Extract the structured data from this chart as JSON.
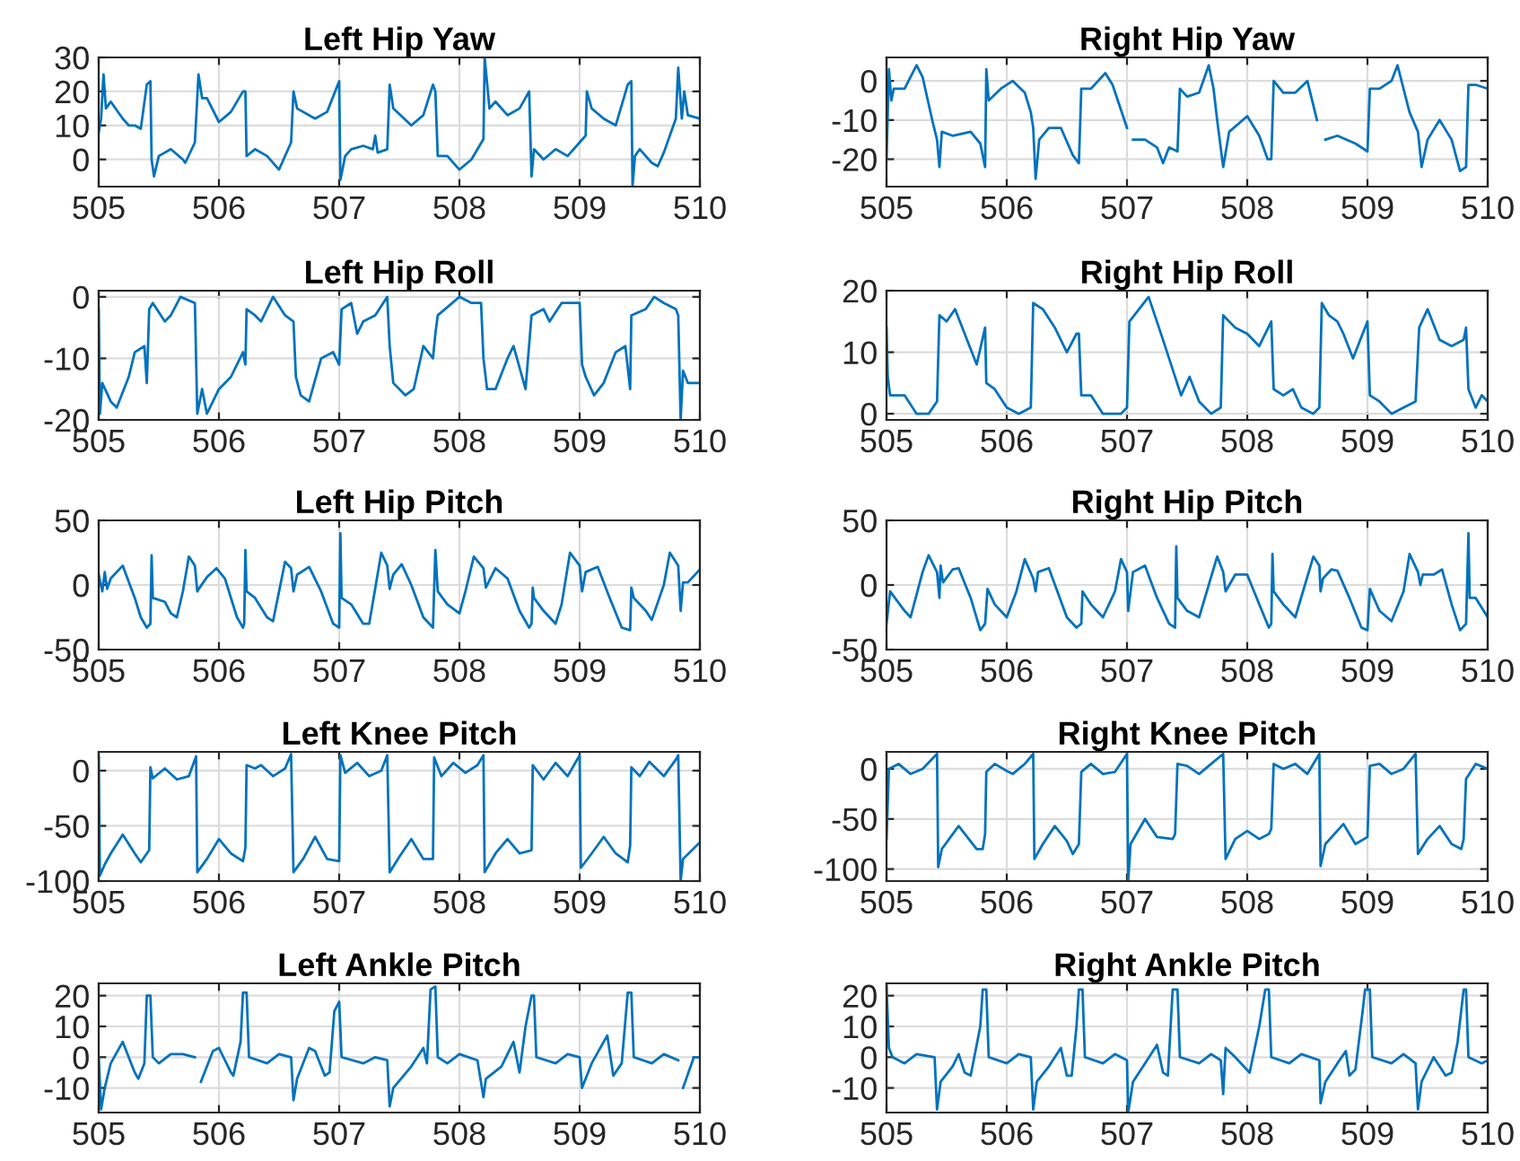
{
  "chart_data": [
    {
      "type": "line",
      "title": "Left Hip Yaw",
      "color": "#0072bd",
      "grid": true,
      "xlim": [
        505,
        510
      ],
      "xticks": [
        505,
        506,
        507,
        508,
        509,
        510
      ],
      "ylim": [
        -8,
        30
      ],
      "yticks": [
        0,
        10,
        20,
        30
      ],
      "x": [
        505.0,
        505.02,
        505.04,
        505.06,
        505.1,
        505.2,
        505.25,
        505.3,
        505.35,
        505.4,
        505.43,
        505.44,
        505.46,
        505.5,
        505.6,
        505.7,
        505.72,
        505.8,
        505.83,
        505.86,
        505.9,
        506.0,
        506.1,
        506.2,
        506.22,
        506.23,
        506.3,
        506.4,
        506.5,
        506.6,
        506.62,
        506.65,
        506.8,
        506.9,
        507.0,
        507.01,
        507.05,
        507.1,
        507.2,
        507.28,
        507.3,
        507.32,
        507.4,
        507.42,
        507.45,
        507.6,
        507.7,
        507.78,
        507.8,
        507.82,
        507.9,
        508.0,
        508.1,
        508.2,
        508.21,
        508.25,
        508.3,
        508.4,
        508.5,
        508.58,
        508.6,
        508.62,
        508.7,
        508.8,
        508.9,
        509.0,
        509.05,
        509.06,
        509.1,
        509.2,
        509.3,
        509.4,
        509.43,
        509.44,
        509.46,
        509.5,
        509.6,
        509.65,
        509.7,
        509.8,
        509.82,
        509.85,
        509.87,
        509.9,
        510.0
      ],
      "values": [
        8,
        12,
        25,
        15,
        17,
        12,
        10,
        10,
        9,
        22,
        23,
        0,
        -5,
        1,
        3,
        0,
        -1,
        5,
        25,
        18,
        18,
        11,
        14,
        20,
        20,
        1,
        3,
        1,
        -3,
        5,
        20,
        15,
        12,
        14,
        23,
        -6,
        1,
        3,
        4,
        3,
        7,
        2,
        3,
        22,
        15,
        10,
        13,
        22,
        20,
        1,
        1,
        -3,
        0,
        6,
        30,
        15,
        17,
        13,
        15,
        20,
        -5,
        3,
        0,
        3,
        1,
        5,
        7,
        20,
        15,
        12,
        10,
        22,
        23,
        -8,
        1,
        3,
        -1,
        -2,
        2,
        12,
        27,
        12,
        20,
        13,
        12
      ]
    },
    {
      "type": "line",
      "title": "Right Hip Yaw",
      "color": "#0072bd",
      "grid": true,
      "xlim": [
        505,
        510
      ],
      "xticks": [
        505,
        506,
        507,
        508,
        509,
        510
      ],
      "ylim": [
        -27,
        6
      ],
      "yticks": [
        -20,
        -10,
        0
      ],
      "x": [
        505.0,
        505.02,
        505.04,
        505.06,
        505.15,
        505.25,
        505.3,
        505.38,
        505.42,
        505.44,
        505.46,
        505.55,
        505.7,
        505.78,
        505.82,
        505.83,
        505.85,
        505.95,
        506.05,
        506.15,
        506.2,
        506.22,
        506.24,
        506.27,
        506.35,
        506.45,
        506.55,
        506.6,
        506.62,
        506.7,
        506.82,
        506.88,
        507.0,
        507.02,
        507.05,
        507.15,
        507.25,
        507.3,
        507.35,
        507.42,
        507.44,
        507.5,
        507.6,
        507.68,
        507.72,
        507.75,
        507.8,
        507.85,
        508.0,
        508.1,
        508.17,
        508.2,
        508.22,
        508.3,
        508.4,
        508.5,
        508.58,
        508.61,
        508.65,
        508.75,
        508.9,
        509.0,
        509.02,
        509.1,
        509.2,
        509.25,
        509.35,
        509.42,
        509.45,
        509.5,
        509.6,
        509.7,
        509.77,
        509.82,
        509.84,
        509.9,
        510.0
      ],
      "values": [
        -20,
        3,
        -5,
        -2,
        -2,
        4,
        1,
        -10,
        -15,
        -22,
        -13,
        -14,
        -13,
        -16,
        -22,
        3,
        -5,
        -2,
        0,
        -3,
        -8,
        -12,
        -25,
        -15,
        -12,
        -12,
        -19,
        -21,
        -2,
        -2,
        2,
        -1,
        -12,
        null,
        -15,
        -15,
        -17,
        -21,
        -17,
        -18,
        -2,
        -4,
        -3,
        4,
        -2,
        -10,
        -22,
        -13,
        -9,
        -14,
        -20,
        -20,
        0,
        -3,
        -3,
        0,
        -10,
        null,
        -15,
        -14,
        -16,
        -18,
        -2,
        -2,
        0,
        4,
        -8,
        -13,
        -22,
        -15,
        -10,
        -15,
        -23,
        -22,
        -1,
        -1,
        -2
      ]
    },
    {
      "type": "line",
      "title": "Left Hip Roll",
      "color": "#0072bd",
      "grid": true,
      "xlim": [
        505,
        510
      ],
      "xticks": [
        505,
        506,
        507,
        508,
        509,
        510
      ],
      "ylim": [
        -20,
        1
      ],
      "yticks": [
        -20,
        -10,
        0
      ],
      "x": [
        505.0,
        505.01,
        505.03,
        505.1,
        505.15,
        505.25,
        505.3,
        505.38,
        505.4,
        505.42,
        505.45,
        505.55,
        505.6,
        505.68,
        505.8,
        505.82,
        505.86,
        505.9,
        506.0,
        506.1,
        506.2,
        506.22,
        506.23,
        506.3,
        506.35,
        506.45,
        506.55,
        506.62,
        506.64,
        506.68,
        506.75,
        506.85,
        506.95,
        507.0,
        507.02,
        507.1,
        507.15,
        507.2,
        507.3,
        507.4,
        507.42,
        507.45,
        507.55,
        507.62,
        507.7,
        507.78,
        507.8,
        507.82,
        507.88,
        508.0,
        508.1,
        508.18,
        508.2,
        508.23,
        508.3,
        508.4,
        508.45,
        508.55,
        508.6,
        508.7,
        508.75,
        508.85,
        509.0,
        509.02,
        509.05,
        509.12,
        509.2,
        509.3,
        509.38,
        509.42,
        509.43,
        509.55,
        509.62,
        509.7,
        509.8,
        509.82,
        509.84,
        509.86,
        509.9,
        510.0
      ],
      "values": [
        -2,
        -19,
        -14,
        -17,
        -18,
        -13,
        -9,
        -8,
        -14,
        -2,
        -1,
        -4,
        -3,
        0,
        -1,
        -19,
        -15,
        -19,
        -15,
        -13,
        -9,
        -11,
        -2,
        -3,
        -4,
        0,
        -3,
        -4,
        -13,
        -16,
        -17,
        -10,
        -9,
        -11,
        -2,
        -1,
        -6,
        -4,
        -3,
        0,
        -8,
        -14,
        -16,
        -15,
        -8,
        -10,
        -6,
        -3,
        -2,
        0,
        -1,
        -1,
        -10,
        -15,
        -15,
        -10,
        -8,
        -15,
        -3,
        -2,
        -4,
        -1,
        -1,
        -11,
        -13,
        -16,
        -14,
        -9,
        -8,
        -15,
        -3,
        -2,
        0,
        -1,
        -2,
        -3,
        -20,
        -12,
        -14,
        -14
      ]
    },
    {
      "type": "line",
      "title": "Right Hip Roll",
      "color": "#0072bd",
      "grid": true,
      "xlim": [
        505,
        510
      ],
      "xticks": [
        505,
        506,
        507,
        508,
        509,
        510
      ],
      "ylim": [
        -1,
        20
      ],
      "yticks": [
        0,
        10,
        20
      ],
      "x": [
        505.0,
        505.01,
        505.03,
        505.15,
        505.25,
        505.35,
        505.42,
        505.44,
        505.5,
        505.57,
        505.65,
        505.75,
        505.82,
        505.83,
        505.9,
        506.0,
        506.1,
        506.2,
        506.22,
        506.3,
        506.4,
        506.5,
        506.58,
        506.6,
        506.62,
        506.7,
        506.8,
        506.95,
        507.0,
        507.02,
        507.1,
        507.18,
        507.3,
        507.45,
        507.52,
        507.6,
        507.7,
        507.78,
        507.8,
        507.9,
        508.0,
        508.1,
        508.2,
        508.22,
        508.3,
        508.38,
        508.45,
        508.55,
        508.6,
        508.62,
        508.68,
        508.75,
        508.8,
        508.88,
        509.0,
        509.02,
        509.1,
        509.2,
        509.3,
        509.4,
        509.43,
        509.5,
        509.6,
        509.7,
        509.8,
        509.82,
        509.84,
        509.9,
        509.95,
        510.0
      ],
      "values": [
        14,
        6,
        3,
        3,
        0,
        0,
        2,
        16,
        15,
        17,
        13,
        8,
        14,
        5,
        4,
        1,
        0,
        1,
        18,
        17,
        14,
        10,
        13,
        13,
        3,
        3,
        0,
        0,
        1,
        15,
        17,
        19,
        12,
        3,
        6,
        2,
        0,
        1,
        16,
        14,
        13,
        11,
        15,
        4,
        3,
        4,
        1,
        0,
        1,
        18,
        16,
        15,
        13,
        9,
        15,
        3,
        2,
        0,
        1,
        2,
        14,
        17,
        12,
        11,
        12,
        14,
        4,
        1,
        3,
        2
      ]
    },
    {
      "type": "line",
      "title": "Left Hip Pitch",
      "color": "#0072bd",
      "grid": true,
      "xlim": [
        505,
        510
      ],
      "xticks": [
        505,
        506,
        507,
        508,
        509,
        510
      ],
      "ylim": [
        -50,
        50
      ],
      "yticks": [
        -50,
        0,
        50
      ],
      "x": [
        505.0,
        505.03,
        505.05,
        505.07,
        505.1,
        505.2,
        505.3,
        505.35,
        505.4,
        505.43,
        505.44,
        505.45,
        505.55,
        505.6,
        505.65,
        505.7,
        505.75,
        505.8,
        505.82,
        505.84,
        505.9,
        505.98,
        506.05,
        506.15,
        506.2,
        506.21,
        506.22,
        506.23,
        506.3,
        506.4,
        506.45,
        506.5,
        506.55,
        506.6,
        506.62,
        506.65,
        506.75,
        506.85,
        506.95,
        507.0,
        507.01,
        507.02,
        507.1,
        507.2,
        507.25,
        507.35,
        507.4,
        507.42,
        507.45,
        507.52,
        507.6,
        507.7,
        507.78,
        507.8,
        507.82,
        507.9,
        508.0,
        508.05,
        508.12,
        508.2,
        508.22,
        508.3,
        508.4,
        508.5,
        508.58,
        508.6,
        508.61,
        508.62,
        508.7,
        508.8,
        508.85,
        508.92,
        509.0,
        509.02,
        509.05,
        509.15,
        509.25,
        509.35,
        509.42,
        509.43,
        509.45,
        509.55,
        509.6,
        509.7,
        509.75,
        509.82,
        509.84,
        509.86,
        509.9,
        510.0
      ],
      "values": [
        8,
        -5,
        10,
        -3,
        5,
        15,
        -10,
        -25,
        -33,
        -30,
        23,
        -10,
        -13,
        -22,
        -25,
        -5,
        22,
        15,
        -5,
        -2,
        6,
        13,
        5,
        -25,
        -33,
        -30,
        27,
        -5,
        -10,
        -25,
        -28,
        -5,
        18,
        13,
        -5,
        8,
        14,
        -5,
        -30,
        -33,
        40,
        -10,
        -15,
        -30,
        -30,
        25,
        15,
        -3,
        8,
        16,
        0,
        -25,
        -33,
        27,
        -5,
        -15,
        -22,
        -5,
        22,
        13,
        -2,
        13,
        5,
        -20,
        -33,
        -30,
        -2,
        -10,
        -20,
        -30,
        -15,
        25,
        15,
        -5,
        10,
        14,
        -10,
        -33,
        -35,
        -2,
        -10,
        -20,
        -27,
        0,
        25,
        15,
        -20,
        2,
        2,
        12
      ]
    },
    {
      "type": "line",
      "title": "Right Hip Pitch",
      "color": "#0072bd",
      "grid": true,
      "xlim": [
        505,
        510
      ],
      "xticks": [
        505,
        506,
        507,
        508,
        509,
        510
      ],
      "ylim": [
        -50,
        50
      ],
      "yticks": [
        -50,
        0,
        50
      ],
      "x": [
        505.0,
        505.03,
        505.07,
        505.15,
        505.2,
        505.3,
        505.35,
        505.42,
        505.44,
        505.45,
        505.47,
        505.55,
        505.6,
        505.7,
        505.78,
        505.82,
        505.84,
        505.9,
        506.0,
        506.08,
        506.15,
        506.22,
        506.24,
        506.26,
        506.35,
        506.5,
        506.58,
        506.62,
        506.63,
        506.7,
        506.8,
        506.9,
        506.95,
        507.0,
        507.01,
        507.05,
        507.15,
        507.25,
        507.35,
        507.4,
        507.41,
        507.42,
        507.5,
        507.6,
        507.75,
        507.8,
        507.82,
        507.9,
        508.0,
        508.1,
        508.18,
        508.2,
        508.21,
        508.22,
        508.3,
        508.4,
        508.55,
        508.6,
        508.61,
        508.63,
        508.7,
        508.75,
        508.85,
        508.95,
        509.0,
        509.02,
        509.1,
        509.2,
        509.3,
        509.35,
        509.42,
        509.44,
        509.46,
        509.55,
        509.62,
        509.7,
        509.77,
        509.82,
        509.84,
        509.85,
        509.9,
        510.0
      ],
      "values": [
        -30,
        -5,
        -10,
        -20,
        -25,
        10,
        23,
        10,
        -10,
        15,
        2,
        12,
        13,
        -10,
        -35,
        -30,
        -3,
        -15,
        -25,
        -5,
        20,
        5,
        -5,
        10,
        13,
        -25,
        -33,
        -30,
        -5,
        -15,
        -25,
        -5,
        20,
        10,
        -20,
        10,
        15,
        -10,
        -30,
        -33,
        30,
        -10,
        -20,
        -25,
        22,
        10,
        -5,
        8,
        8,
        -15,
        -33,
        -30,
        24,
        -5,
        -15,
        -25,
        22,
        15,
        -5,
        5,
        12,
        11,
        -10,
        -33,
        -35,
        -3,
        -20,
        -28,
        -5,
        24,
        10,
        0,
        8,
        8,
        12,
        -15,
        -35,
        -30,
        40,
        -10,
        -10,
        -25
      ]
    },
    {
      "type": "line",
      "title": "Left Knee Pitch",
      "color": "#0072bd",
      "grid": true,
      "xlim": [
        505,
        510
      ],
      "xticks": [
        505,
        506,
        507,
        508,
        509,
        510
      ],
      "ylim": [
        -100,
        17
      ],
      "yticks": [
        -100,
        -50,
        0
      ],
      "x": [
        505.0,
        505.01,
        505.05,
        505.1,
        505.2,
        505.3,
        505.35,
        505.42,
        505.43,
        505.45,
        505.55,
        505.65,
        505.75,
        505.81,
        505.82,
        505.9,
        506.0,
        506.1,
        506.2,
        506.22,
        506.23,
        506.3,
        506.35,
        506.45,
        506.55,
        506.6,
        506.62,
        506.7,
        506.8,
        506.9,
        507.0,
        507.01,
        507.05,
        507.15,
        507.25,
        507.35,
        507.4,
        507.42,
        507.5,
        507.6,
        507.7,
        507.78,
        507.79,
        507.85,
        507.95,
        508.05,
        508.15,
        508.2,
        508.21,
        508.3,
        508.4,
        508.5,
        508.6,
        508.61,
        508.7,
        508.8,
        508.9,
        509.0,
        509.01,
        509.1,
        509.2,
        509.3,
        509.4,
        509.42,
        509.43,
        509.5,
        509.58,
        509.7,
        509.8,
        509.82,
        509.84,
        509.86,
        510.0
      ],
      "values": [
        12,
        -95,
        -85,
        -75,
        -58,
        -75,
        -83,
        -72,
        3,
        -7,
        2,
        -8,
        -5,
        13,
        -92,
        -80,
        -62,
        -75,
        -82,
        -70,
        5,
        2,
        5,
        -5,
        2,
        15,
        -92,
        -80,
        -60,
        -80,
        -82,
        14,
        -2,
        7,
        -5,
        0,
        14,
        -92,
        -78,
        -62,
        -80,
        -80,
        12,
        -5,
        7,
        -2,
        5,
        14,
        -92,
        -75,
        -62,
        -75,
        -72,
        5,
        -8,
        7,
        -5,
        14,
        -88,
        -75,
        -60,
        -75,
        -83,
        -68,
        3,
        -5,
        8,
        -5,
        10,
        14,
        -100,
        -80,
        -65
      ]
    },
    {
      "type": "line",
      "title": "Right Knee Pitch",
      "color": "#0072bd",
      "grid": true,
      "xlim": [
        505,
        510
      ],
      "xticks": [
        505,
        506,
        507,
        508,
        509,
        510
      ],
      "ylim": [
        -112,
        17
      ],
      "yticks": [
        -100,
        -50,
        0
      ],
      "x": [
        505.0,
        505.02,
        505.1,
        505.2,
        505.3,
        505.42,
        505.43,
        505.46,
        505.6,
        505.75,
        505.8,
        505.82,
        505.83,
        505.9,
        506.0,
        506.05,
        506.15,
        506.22,
        506.23,
        506.3,
        506.4,
        506.5,
        506.55,
        506.6,
        506.62,
        506.7,
        506.8,
        506.9,
        507.0,
        507.01,
        507.03,
        507.15,
        507.25,
        507.38,
        507.4,
        507.42,
        507.5,
        507.6,
        507.7,
        507.8,
        507.82,
        507.9,
        508.0,
        508.1,
        508.18,
        508.2,
        508.22,
        508.3,
        508.4,
        508.5,
        508.6,
        508.61,
        508.65,
        508.8,
        508.9,
        509.0,
        509.02,
        509.1,
        509.2,
        509.3,
        509.4,
        509.42,
        509.5,
        509.6,
        509.7,
        509.78,
        509.8,
        509.82,
        509.9,
        510.0
      ],
      "values": [
        -70,
        0,
        5,
        -5,
        0,
        15,
        -98,
        -80,
        -57,
        -80,
        -80,
        -65,
        -3,
        5,
        -2,
        -5,
        5,
        15,
        -90,
        -75,
        -57,
        -72,
        -85,
        -75,
        -3,
        5,
        -5,
        -3,
        15,
        -112,
        -75,
        -50,
        -68,
        -70,
        -65,
        5,
        3,
        -5,
        5,
        15,
        -90,
        -70,
        -62,
        -70,
        -65,
        -60,
        5,
        0,
        5,
        -5,
        15,
        -97,
        -75,
        -55,
        -75,
        -68,
        3,
        5,
        -5,
        0,
        15,
        -85,
        -70,
        -57,
        -75,
        -80,
        -70,
        -10,
        5,
        0
      ]
    },
    {
      "type": "line",
      "title": "Left Ankle Pitch",
      "color": "#0072bd",
      "grid": true,
      "xlim": [
        505,
        510
      ],
      "xticks": [
        505,
        506,
        507,
        508,
        509,
        510
      ],
      "ylim": [
        -18,
        24
      ],
      "yticks": [
        -10,
        0,
        10,
        20
      ],
      "x": [
        505.0,
        505.02,
        505.05,
        505.1,
        505.2,
        505.3,
        505.33,
        505.38,
        505.4,
        505.43,
        505.45,
        505.5,
        505.6,
        505.7,
        505.8,
        505.82,
        505.85,
        505.95,
        506.0,
        506.1,
        506.12,
        506.18,
        506.2,
        506.23,
        506.25,
        506.4,
        506.5,
        506.6,
        506.62,
        506.65,
        506.75,
        506.8,
        506.88,
        506.92,
        506.96,
        507.0,
        507.02,
        507.2,
        507.3,
        507.4,
        507.42,
        507.45,
        507.6,
        507.7,
        507.73,
        507.76,
        507.8,
        507.82,
        507.9,
        508.0,
        508.15,
        508.2,
        508.22,
        508.35,
        508.45,
        508.5,
        508.55,
        508.6,
        508.62,
        508.64,
        508.8,
        508.9,
        509.0,
        509.02,
        509.1,
        509.2,
        509.23,
        509.28,
        509.35,
        509.4,
        509.43,
        509.45,
        509.6,
        509.7,
        509.82,
        509.84,
        509.86,
        509.95,
        510.0
      ],
      "values": [
        0,
        -17,
        -10,
        -2,
        5,
        -5,
        -7,
        -2,
        20,
        20,
        0,
        -2,
        1,
        1,
        0,
        null,
        -8,
        2,
        3,
        -5,
        -6,
        5,
        21,
        21,
        0,
        -2,
        1,
        0,
        -14,
        -7,
        3,
        2,
        -6,
        -5,
        15,
        18,
        0,
        -2,
        0,
        -1,
        -16,
        -10,
        -3,
        3,
        -2,
        22,
        23,
        0,
        -2,
        1,
        -1,
        -13,
        -7,
        -3,
        5,
        -5,
        10,
        20,
        20,
        0,
        -2,
        1,
        0,
        -10,
        -2,
        5,
        7,
        -6,
        -2,
        21,
        21,
        0,
        -2,
        1,
        -1,
        null,
        -10,
        0,
        0
      ]
    },
    {
      "type": "line",
      "title": "Right Ankle Pitch",
      "color": "#0072bd",
      "grid": true,
      "xlim": [
        505,
        510
      ],
      "xticks": [
        505,
        506,
        507,
        508,
        509,
        510
      ],
      "ylim": [
        -18,
        24
      ],
      "yticks": [
        -10,
        0,
        10,
        20
      ],
      "x": [
        505.0,
        505.02,
        505.05,
        505.15,
        505.25,
        505.4,
        505.42,
        505.45,
        505.55,
        505.6,
        505.65,
        505.7,
        505.78,
        505.8,
        505.83,
        505.85,
        506.0,
        506.1,
        506.2,
        506.22,
        506.25,
        506.35,
        506.45,
        506.5,
        506.54,
        506.58,
        506.6,
        506.63,
        506.65,
        506.8,
        506.9,
        507.0,
        507.01,
        507.05,
        507.15,
        507.25,
        507.3,
        507.34,
        507.38,
        507.42,
        507.44,
        507.6,
        507.7,
        507.78,
        507.8,
        507.82,
        507.9,
        508.02,
        508.1,
        508.15,
        508.18,
        508.2,
        508.35,
        508.45,
        508.6,
        508.61,
        508.65,
        508.75,
        508.82,
        508.85,
        508.9,
        508.96,
        508.98,
        509.02,
        509.04,
        509.2,
        509.3,
        509.4,
        509.42,
        509.45,
        509.5,
        509.55,
        509.65,
        509.7,
        509.75,
        509.8,
        509.82,
        509.84,
        509.95,
        510.0
      ],
      "values": [
        23,
        3,
        0,
        -2,
        1,
        0,
        -17,
        -8,
        -3,
        1,
        -5,
        -6,
        10,
        22,
        22,
        0,
        -2,
        1,
        0,
        -17,
        -8,
        -3,
        3,
        -6,
        -6,
        10,
        22,
        22,
        0,
        -2,
        1,
        -1,
        -18,
        -8,
        -2,
        4,
        -5,
        -6,
        22,
        22,
        0,
        -2,
        1,
        -1,
        -12,
        3,
        0,
        -5,
        10,
        22,
        22,
        0,
        -2,
        1,
        -1,
        -15,
        -8,
        -2,
        2,
        -6,
        -4,
        15,
        22,
        22,
        0,
        -2,
        1,
        -2,
        -17,
        -8,
        -4,
        0,
        -6,
        -5,
        5,
        22,
        22,
        0,
        -2,
        -1
      ]
    }
  ]
}
